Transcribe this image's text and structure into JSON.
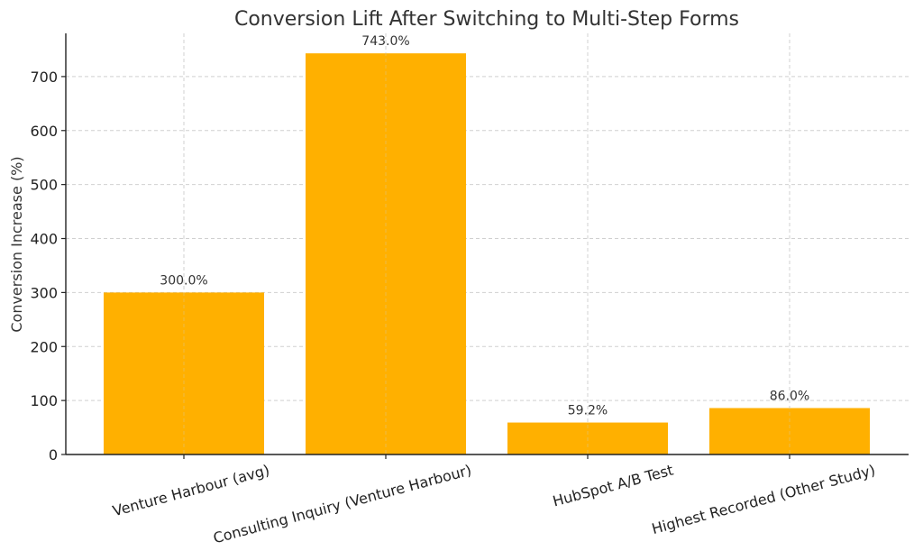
{
  "chart_data": {
    "type": "bar",
    "title": "Conversion Lift After Switching to Multi-Step Forms",
    "xlabel": "",
    "ylabel": "Conversion Increase (%)",
    "categories": [
      "Venture Harbour (avg)",
      "Consulting Inquiry (Venture Harbour)",
      "HubSpot A/B Test",
      "Highest Recorded (Other Study)"
    ],
    "values": [
      300.0,
      743.0,
      59.2,
      86.0
    ],
    "data_labels": [
      "300.0%",
      "743.0%",
      "59.2%",
      "86.0%"
    ],
    "ylim": [
      0,
      780
    ],
    "yticks": [
      0,
      100,
      200,
      300,
      400,
      500,
      600,
      700
    ],
    "grid": true,
    "bar_color": "#ffb000"
  }
}
